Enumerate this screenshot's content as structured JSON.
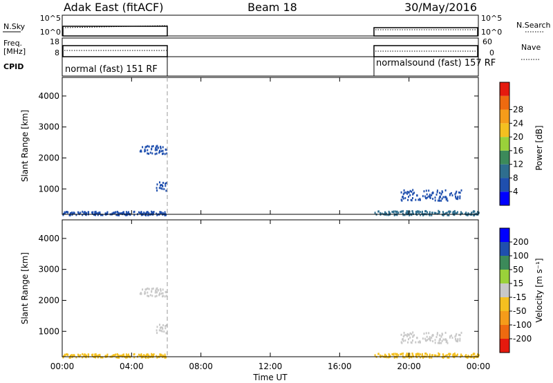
{
  "header": {
    "title": "Adak East (fitACF)",
    "beam": "Beam 18",
    "date": "30/May/2016"
  },
  "summary": {
    "nsky_label": "N.Sky",
    "nsearch_label": "N.Search",
    "freq_label": "Freq.",
    "freq_unit": "[MHz]",
    "nave_label": "Nave",
    "cpid_label": "CPID",
    "noise_ticks": [
      "10^5",
      "10^0"
    ],
    "freq_ticks": [
      "18",
      "8"
    ],
    "nave_ticks": [
      "60",
      "0"
    ],
    "cpid_modes": [
      {
        "label": "normal (fast) 151 RF",
        "start_hour": 0,
        "end_hour": 6
      },
      {
        "label": "normalsound (fast) 157 RF",
        "start_hour": 18,
        "end_hour": 24
      }
    ],
    "freq_mhz": 10.5
  },
  "panels": {
    "xlabel": "Time UT",
    "xticks": [
      "00:00",
      "04:00",
      "08:00",
      "12:00",
      "16:00",
      "20:00",
      "00:00"
    ],
    "ylabel": "Slant Range [km]",
    "yticks": [
      "1000",
      "2000",
      "3000",
      "4000"
    ],
    "power_cb_label": "Power [dB]",
    "power_cb_ticks": [
      "4",
      "8",
      "12",
      "16",
      "20",
      "24",
      "28"
    ],
    "velocity_cb_label": "Velocity [m s⁻¹]",
    "velocity_cb_ticks": [
      "200",
      "100",
      "50",
      "15",
      "-15",
      "-50",
      "-100",
      "-200"
    ]
  },
  "chart_data": [
    {
      "type": "heatmap",
      "name": "Power",
      "xlabel": "Time UT",
      "ylabel": "Slant Range [km]",
      "xlim_hours": [
        0,
        24
      ],
      "ylim_km": [
        180,
        4600
      ],
      "colorbar": {
        "label": "Power [dB]",
        "range": [
          0,
          30
        ],
        "ticks": [
          4,
          8,
          12,
          16,
          20,
          24,
          28
        ]
      },
      "echo_regions": [
        {
          "t": [
            4.4,
            6.0
          ],
          "r": [
            2150,
            2450
          ],
          "value_db": 5
        },
        {
          "t": [
            5.4,
            6.0
          ],
          "r": [
            950,
            1250
          ],
          "value_db": 5
        },
        {
          "t": [
            19.5,
            23.0
          ],
          "r": [
            650,
            1000
          ],
          "value_db": 5
        },
        {
          "t": [
            0.0,
            6.0
          ],
          "r": [
            180,
            300
          ],
          "value_db": 6
        },
        {
          "t": [
            18.0,
            24.0
          ],
          "r": [
            180,
            320
          ],
          "value_db": 8
        }
      ]
    },
    {
      "type": "heatmap",
      "name": "Velocity",
      "xlabel": "Time UT",
      "ylabel": "Slant Range [km]",
      "xlim_hours": [
        0,
        24
      ],
      "ylim_km": [
        180,
        4600
      ],
      "colorbar": {
        "label": "Velocity [m s⁻¹]",
        "range": [
          -250,
          250
        ],
        "ticks": [
          200,
          100,
          50,
          15,
          -15,
          -50,
          -100,
          -200
        ]
      },
      "echo_regions": [
        {
          "t": [
            4.4,
            6.0
          ],
          "r": [
            2150,
            2450
          ],
          "value_ms": 0
        },
        {
          "t": [
            5.4,
            6.0
          ],
          "r": [
            950,
            1250
          ],
          "value_ms": 0
        },
        {
          "t": [
            19.5,
            23.0
          ],
          "r": [
            650,
            1000
          ],
          "value_ms": 0
        },
        {
          "t": [
            0.0,
            6.0
          ],
          "r": [
            180,
            300
          ],
          "value_ms": -30
        },
        {
          "t": [
            18.0,
            24.0
          ],
          "r": [
            180,
            320
          ],
          "value_ms": -30
        }
      ]
    }
  ],
  "colors": {
    "power_scale": [
      "#0000ff",
      "#1f4fae",
      "#2e6e8e",
      "#3c8a5a",
      "#9ad13a",
      "#f4c020",
      "#f59c1a",
      "#ee6a10",
      "#e51a0e"
    ],
    "velocity_scale": [
      "#e51a0e",
      "#ee6a10",
      "#f59c1a",
      "#f4c020",
      "#c8c8c8",
      "#9ad13a",
      "#3c8a5a",
      "#1f4fae",
      "#0000ff"
    ]
  }
}
